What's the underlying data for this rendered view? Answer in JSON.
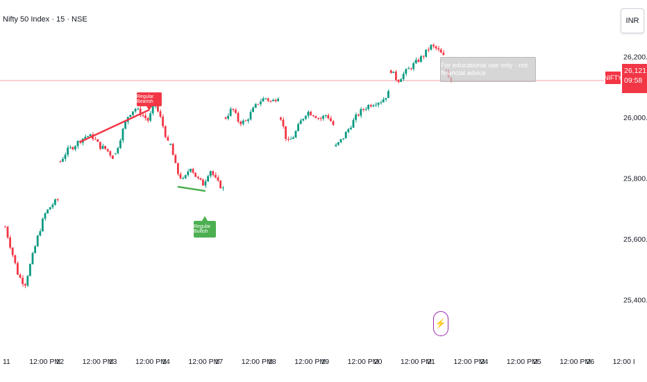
{
  "header": {
    "title": "Nifty 50 Index · 15 · NSE",
    "currency": "INR"
  },
  "price_line": {
    "symbol": "NIFTY",
    "price": "26,121.20",
    "countdown": "09:58",
    "value": 26121.2
  },
  "tooltip_text": "For educational use only - not financial advice",
  "divergence": {
    "bearish_label": "Regular Bearish",
    "bullish_label": "Regular Bullish"
  },
  "flash_icon": "lightning-icon",
  "colors": {
    "up": "#089981",
    "down": "#f23645",
    "bull": "#4caf50",
    "priceline": "#f7a1a8"
  },
  "chart_data": {
    "type": "candlestick",
    "title": "Nifty 50 Index · 15 · NSE",
    "ylim": [
      25340,
      26240
    ],
    "y_ticks": [
      {
        "value": 26200,
        "label": "26,200.00"
      },
      {
        "value": 26000,
        "label": "26,000.00"
      },
      {
        "value": 25800,
        "label": "25,800.00"
      },
      {
        "value": 25600,
        "label": "25,600.00"
      },
      {
        "value": 25400,
        "label": "25,400.00"
      }
    ],
    "x_ticks": [
      "11",
      "12:00 PM",
      "12",
      "12:00 PM",
      "13",
      "12:00 PM",
      "14",
      "12:00 PM",
      "17",
      "12:00 PM",
      "18",
      "12:00 PM",
      "19",
      "12:00 PM",
      "20",
      "12:00 PM",
      "21",
      "12:00 PM",
      "24",
      "12:00 PM",
      "25",
      "12:00 PM",
      "26",
      "12:00 I"
    ],
    "sessions": [
      {
        "day": "11",
        "path": [
          25640,
          25560,
          25480,
          25450,
          25530,
          25610,
          25680,
          25710,
          25730
        ]
      },
      {
        "day": "12",
        "path": [
          25855,
          25890,
          25905,
          25925,
          25940,
          25935,
          25905,
          25895,
          25870
        ]
      },
      {
        "day": "13",
        "path": [
          25880,
          25950,
          26010,
          26030,
          26010,
          25990,
          26045,
          25990,
          25915
        ]
      },
      {
        "day": "14",
        "path": [
          25910,
          25820,
          25790,
          25840,
          25800,
          25780,
          25830,
          25790,
          25765
        ]
      },
      {
        "day": "17",
        "path": [
          26000,
          26030,
          25985,
          25985,
          26020,
          26050,
          26065,
          26050,
          26070
        ]
      },
      {
        "day": "18",
        "path": [
          26000,
          25915,
          25940,
          25985,
          26020,
          26010,
          25995,
          26010,
          25975
        ]
      },
      {
        "day": "19",
        "path": [
          25905,
          25930,
          25965,
          26000,
          26025,
          26040,
          26050,
          26055,
          26080
        ]
      },
      {
        "day": "20",
        "path": [
          26155,
          26120,
          26145,
          26165,
          26185,
          26205,
          26235,
          26225,
          26200
        ]
      },
      {
        "day": "21",
        "path": [
          26155,
          26121
        ]
      }
    ],
    "annotations": [
      {
        "label": "Regular Bearish",
        "from": 25920,
        "to": 26025
      },
      {
        "label": "Regular Bullish",
        "from": 25772,
        "to": 25758
      }
    ]
  }
}
